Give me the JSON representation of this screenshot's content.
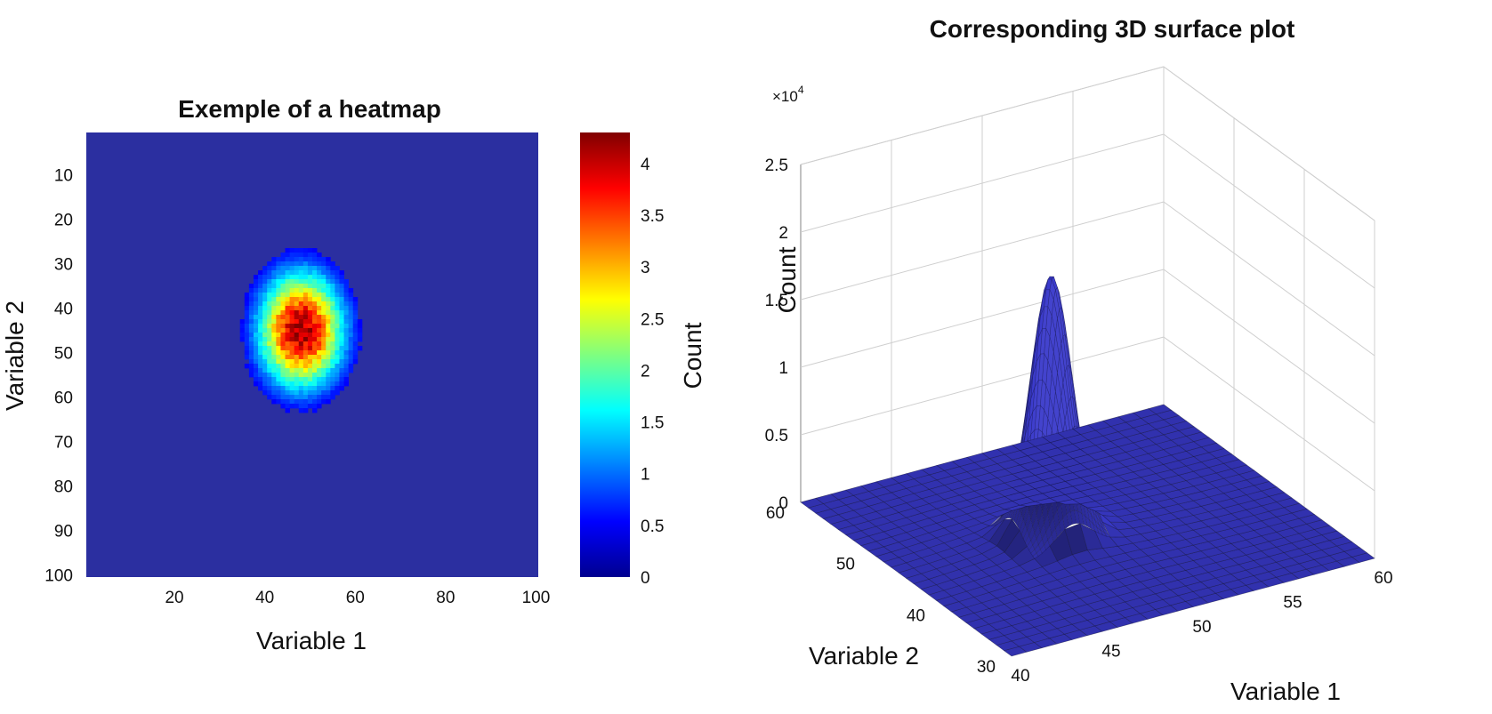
{
  "chart_data": [
    {
      "type": "heatmap",
      "title": "Exemple of a heatmap",
      "xlabel": "Variable 1",
      "ylabel": "Variable 2",
      "xlim": [
        1,
        100
      ],
      "ylim": [
        1,
        100
      ],
      "y_reversed": true,
      "x_ticks": [
        "20",
        "40",
        "60",
        "80",
        "100"
      ],
      "y_ticks": [
        "10",
        "20",
        "30",
        "40",
        "50",
        "60",
        "70",
        "80",
        "90",
        "100"
      ],
      "peak": {
        "x": 48,
        "y": 45,
        "value": 4.2
      },
      "spread": {
        "x": 6.5,
        "y": 9
      },
      "colorbar": {
        "label": "Count",
        "range": [
          0,
          4.3
        ],
        "ticks": [
          "0",
          "0.5",
          "1",
          "1.5",
          "2",
          "2.5",
          "3",
          "3.5",
          "4"
        ],
        "colormap": "jet"
      },
      "background_color": "#2b2fa0"
    },
    {
      "type": "surface",
      "title": "Corresponding 3D surface plot",
      "xlabel": "Variable 1",
      "ylabel": "Variable 2",
      "zlabel": "Count",
      "z_exponent": "×10",
      "z_exponent_power": "4",
      "xlim": [
        40,
        60
      ],
      "ylim": [
        30,
        60
      ],
      "zlim": [
        0,
        2.5
      ],
      "x_ticks": [
        "40",
        "45",
        "50",
        "55",
        "60"
      ],
      "y_ticks": [
        "30",
        "40",
        "50",
        "60"
      ],
      "z_ticks": [
        "0",
        "0.5",
        "1",
        "1.5",
        "2",
        "2.5"
      ],
      "peak": {
        "x": 48,
        "y": 45,
        "value": 1.9
      },
      "grid": true,
      "surface_color": "#3a3acd"
    }
  ]
}
